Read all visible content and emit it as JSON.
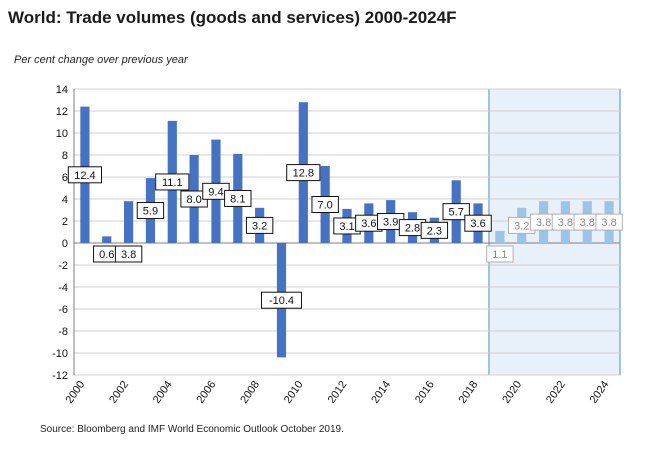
{
  "title": "World: Trade volumes (goods and services) 2000-2024F",
  "subtitle": "Per cent change over previous year",
  "source": "Source: Bloomberg and IMF World Economic Outlook October 2019.",
  "colors": {
    "bar": "#4472c4",
    "forecast_bar": "#9dc3e6",
    "forecast_fill": "#e8f1fa",
    "forecast_border": "#4a8fc9",
    "grid": "#d0d0d0"
  },
  "chart_data": {
    "type": "bar",
    "title": "World: Trade volumes (goods and services) 2000-2024F",
    "ylabel": "Per cent change over previous year",
    "xlabel": "",
    "ylim": [
      -12,
      14
    ],
    "yticks": [
      -12,
      -10,
      -8,
      -6,
      -4,
      -2,
      0,
      2,
      4,
      6,
      8,
      10,
      12,
      14
    ],
    "categories": [
      "2000",
      "2001",
      "2002",
      "2003",
      "2004",
      "2005",
      "2006",
      "2007",
      "2008",
      "2009",
      "2010",
      "2011",
      "2012",
      "2013",
      "2014",
      "2015",
      "2016",
      "2017",
      "2018",
      "2019",
      "2020",
      "2021",
      "2022",
      "2023",
      "2024"
    ],
    "xtick_labels": [
      "2000",
      "2002",
      "2004",
      "2006",
      "2008",
      "2010",
      "2012",
      "2014",
      "2016",
      "2018",
      "2020",
      "2022",
      "2024"
    ],
    "values": [
      12.4,
      0.6,
      3.8,
      5.9,
      11.1,
      8.0,
      9.4,
      8.1,
      3.2,
      -10.4,
      12.8,
      7.0,
      3.1,
      3.6,
      3.9,
      2.8,
      2.3,
      5.7,
      3.6,
      1.1,
      3.2,
      3.8,
      3.8,
      3.8,
      3.8
    ],
    "data_labels": [
      "12.4",
      "0.6",
      "3.8",
      "5.9",
      "11.1",
      "8.0",
      "9.4",
      "8.1",
      "3.2",
      "-10.4",
      "12.8",
      "7.0",
      "3.1",
      "3.6",
      "3.9",
      "2.8",
      "2.3",
      "5.7",
      "3.6",
      "1.1",
      "3.2",
      "3.8",
      "3.8",
      "3.8",
      "3.8"
    ],
    "label_style": [
      "a",
      "b",
      "b",
      "a",
      "a",
      "a",
      "a",
      "a",
      "a",
      "b",
      "a",
      "a",
      "a",
      "a",
      "a",
      "a",
      "a",
      "a",
      "a",
      "b",
      "a",
      "a",
      "a",
      "a",
      "a"
    ],
    "forecast_start": "2019",
    "grid": true
  }
}
